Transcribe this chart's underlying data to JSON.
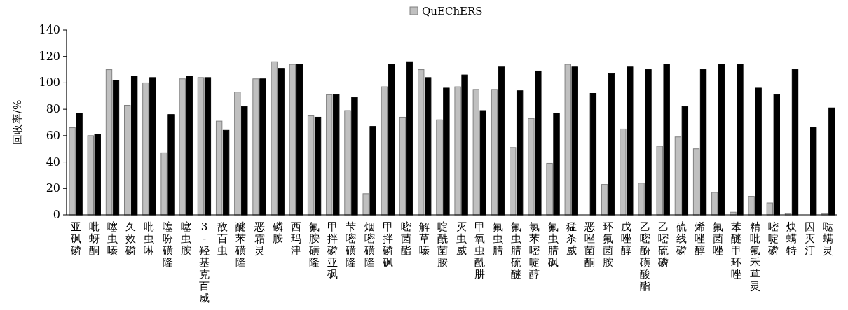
{
  "chart_data": {
    "type": "bar",
    "ylabel": "回收率/%",
    "ylim": [
      0,
      140
    ],
    "yticks": [
      0,
      20,
      40,
      60,
      80,
      100,
      120,
      140
    ],
    "grid": false,
    "legend": "top",
    "categories": [
      "亚砜磷",
      "吡蚜酮",
      "噻虫嗪",
      "久效磷",
      "吡虫啉",
      "噻吩磺隆",
      "噻虫胺",
      "3-羟基克百威",
      "敌百虫",
      "醚苯磺隆",
      "恶霜灵",
      "磷胺",
      "西玛津",
      "氟胺磺隆",
      "甲拌磷亚砜",
      "苄嘧磺隆",
      "烟嘧磺隆",
      "甲拌磷砜",
      "嘧菌酯",
      "解草嗪",
      "啶酰菌胺",
      "灭虫威",
      "甲氧虫酰肼",
      "氟虫腈",
      "氟虫腈硫醚",
      "氯苯嘧啶醇",
      "氟虫腈砜",
      "猛杀威",
      "恶唑菌酮",
      "环氟菌胺",
      "戊唑醇",
      "乙嘧酚磺酸酯",
      "乙嘧硫磷",
      "硫线磷",
      "烯唑醇",
      "氟菌唑",
      "苯醚甲环唑",
      "精吡氟禾草灵",
      "嘧啶磷",
      "炔螨特",
      "因灭汀",
      "哒螨灵"
    ],
    "series": [
      {
        "name": "QuEChERS",
        "color": "#c0c0c0",
        "values": [
          66,
          60,
          110,
          83,
          100,
          47,
          103,
          104,
          71,
          93,
          103,
          116,
          114,
          75,
          91,
          79,
          16,
          97,
          74,
          110,
          72,
          97,
          95,
          95,
          51,
          73,
          39,
          114,
          null,
          23,
          65,
          24,
          52,
          59,
          50,
          17,
          2,
          14,
          9,
          1,
          null,
          1
        ]
      },
      {
        "color": "#000000",
        "values": [
          77,
          61,
          102,
          105,
          104,
          76,
          105,
          104,
          64,
          82,
          103,
          111,
          114,
          74,
          91,
          89,
          67,
          114,
          116,
          104,
          96,
          106,
          79,
          112,
          94,
          109,
          77,
          112,
          92,
          107,
          112,
          110,
          114,
          82,
          110,
          114,
          114,
          96,
          91,
          110,
          66,
          81
        ]
      }
    ]
  }
}
